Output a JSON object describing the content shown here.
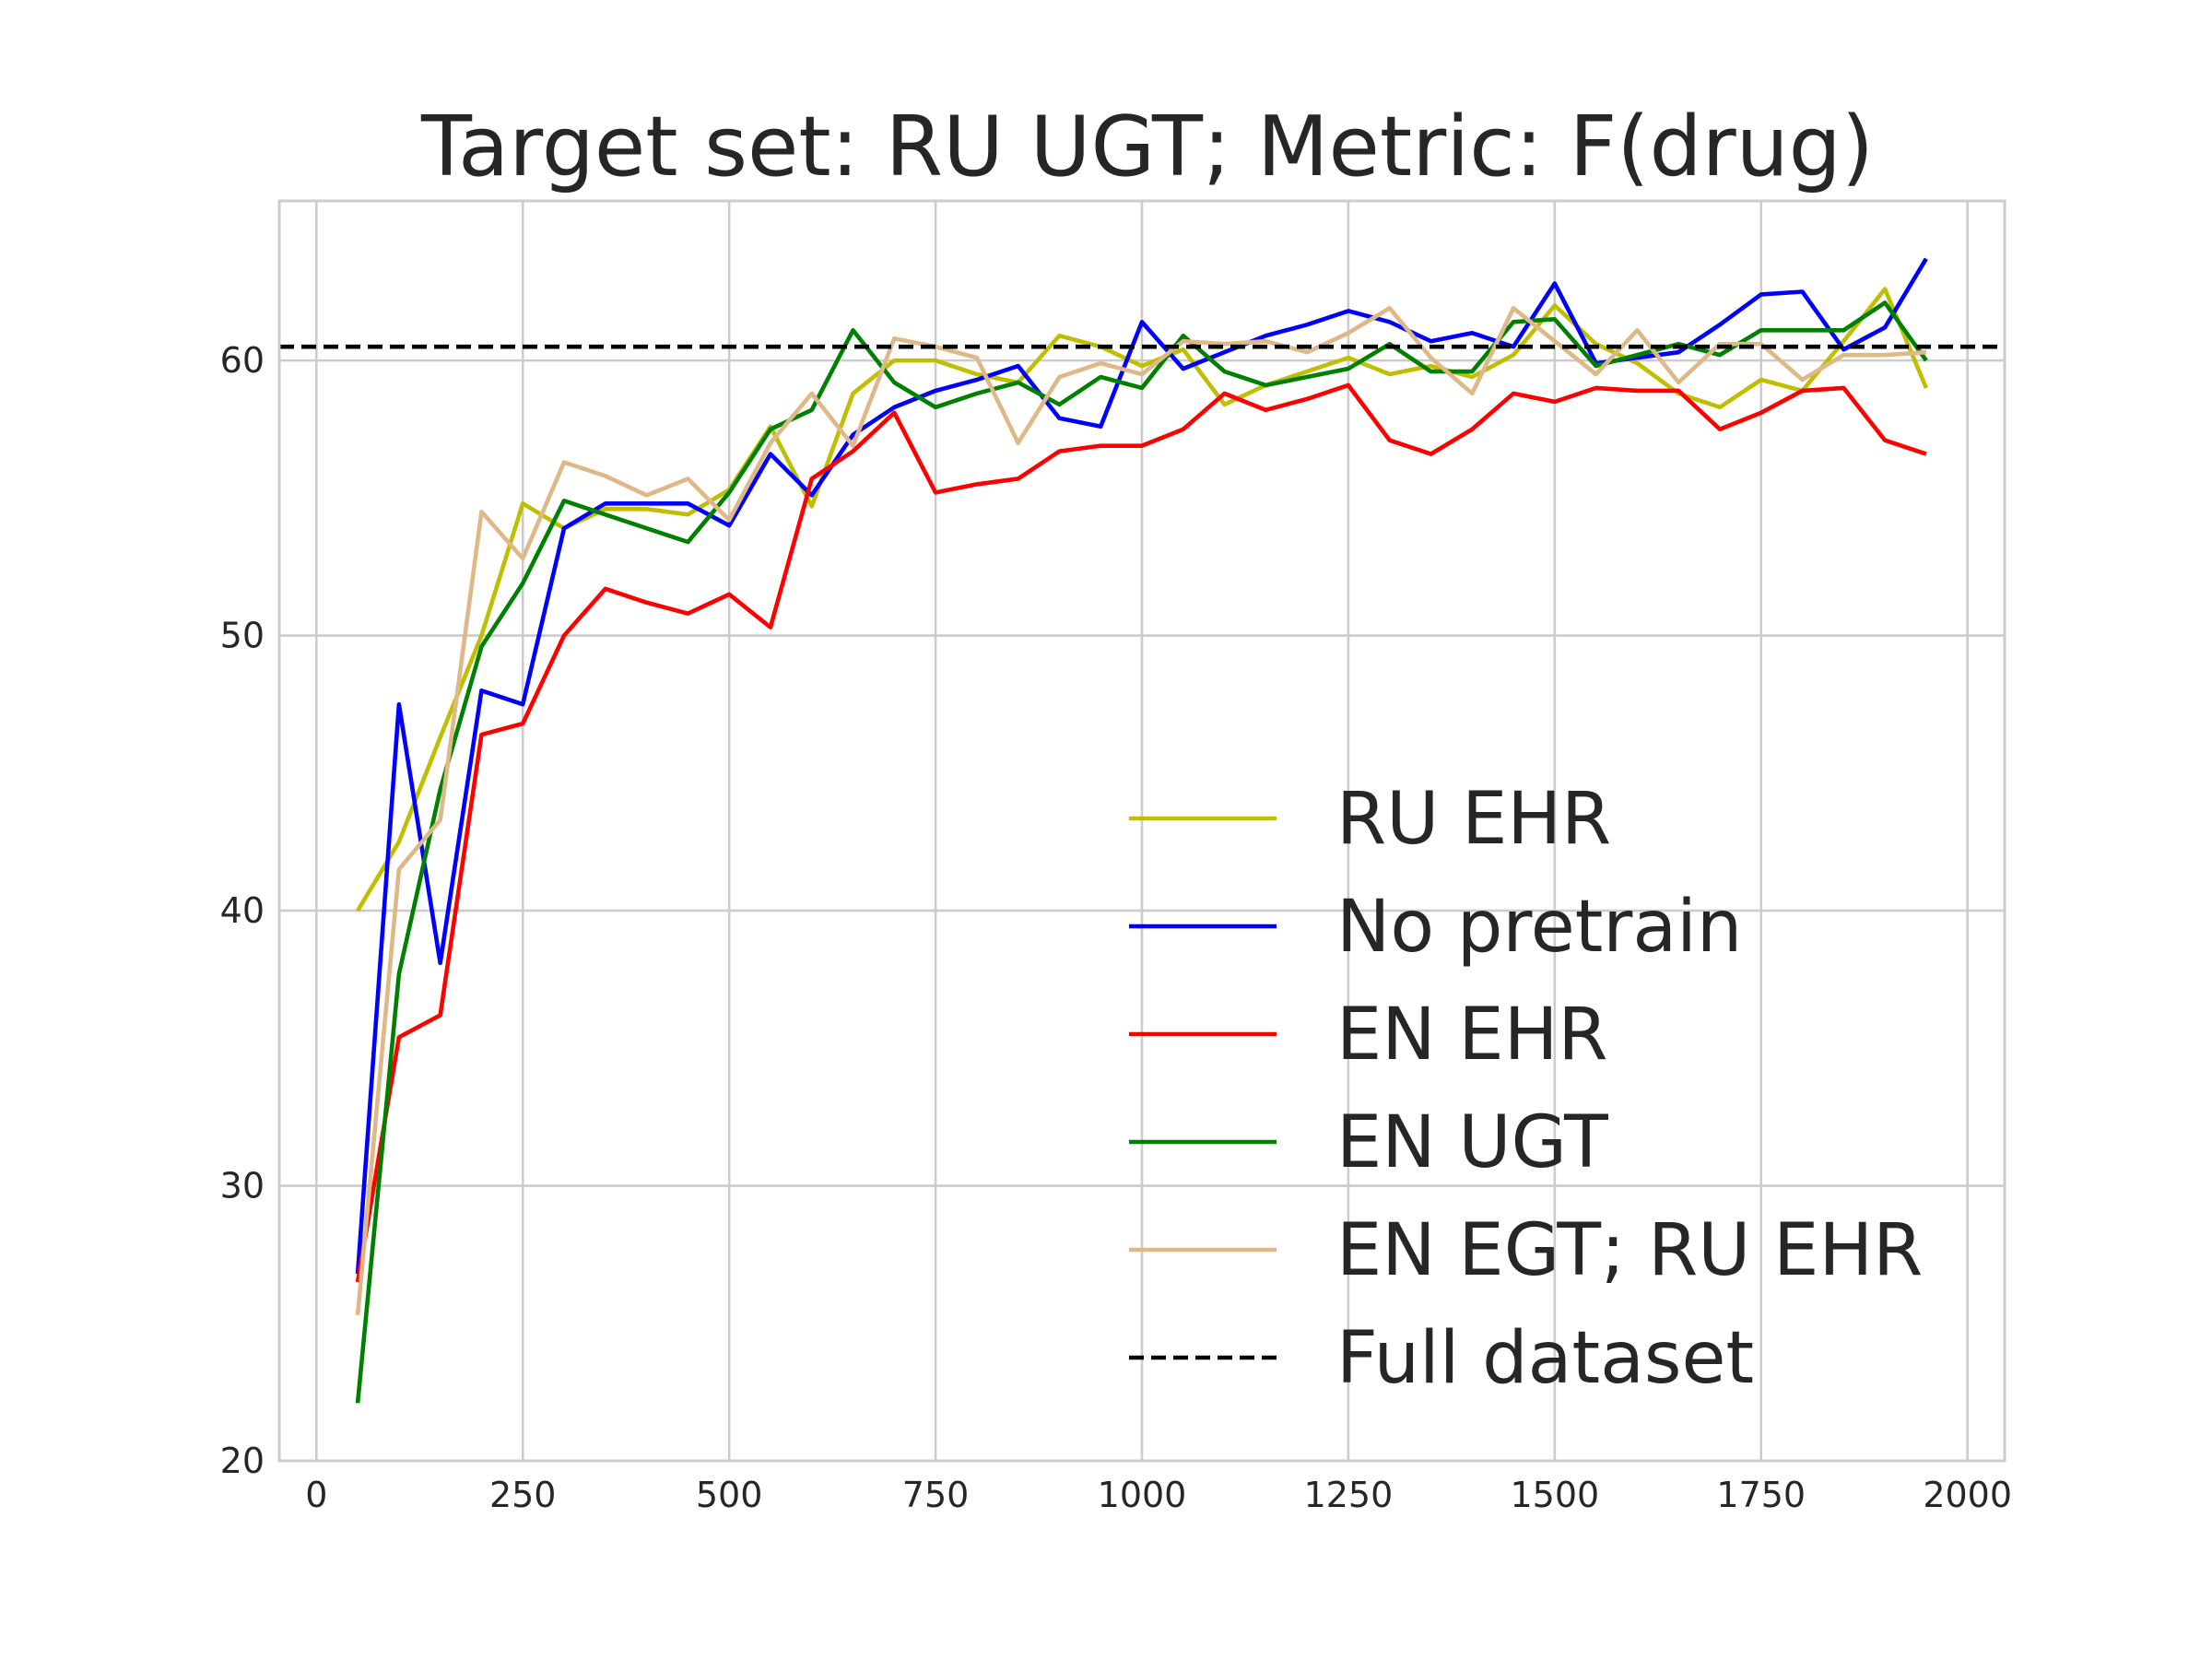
{
  "chart_data": {
    "type": "line",
    "title": "Target set: RU UGT; Metric: F(drug)",
    "xlabel": "",
    "ylabel": "",
    "xlim": [
      -45,
      2045
    ],
    "ylim": [
      20,
      65.8
    ],
    "x_ticks": [
      0,
      250,
      500,
      750,
      1000,
      1250,
      1500,
      1750,
      2000
    ],
    "y_ticks": [
      20,
      30,
      40,
      50,
      60
    ],
    "grid": true,
    "legend_position": "lower-right",
    "x": [
      50,
      100,
      150,
      200,
      250,
      300,
      350,
      400,
      450,
      500,
      550,
      600,
      650,
      700,
      750,
      800,
      850,
      900,
      950,
      1000,
      1050,
      1100,
      1150,
      1200,
      1250,
      1300,
      1350,
      1400,
      1450,
      1500,
      1550,
      1600,
      1650,
      1700,
      1750,
      1800,
      1850,
      1900,
      1950
    ],
    "series": [
      {
        "name": "RU EHR",
        "color": "#bfbf00",
        "style": "solid",
        "values": [
          40.0,
          42.5,
          46.3,
          50.0,
          54.8,
          53.9,
          54.6,
          54.6,
          54.4,
          55.3,
          57.6,
          54.7,
          58.8,
          60.0,
          60.0,
          59.5,
          59.2,
          60.9,
          60.5,
          59.8,
          60.4,
          58.4,
          59.1,
          59.6,
          60.1,
          59.5,
          59.8,
          59.4,
          60.2,
          62.0,
          60.6,
          59.9,
          58.8,
          58.3,
          59.3,
          58.9,
          60.7,
          62.6,
          59.0
        ]
      },
      {
        "name": "No pretrain",
        "color": "#0000ff",
        "style": "solid",
        "values": [
          26.8,
          47.5,
          38.1,
          48.0,
          47.5,
          53.9,
          54.8,
          54.8,
          54.8,
          54.0,
          56.6,
          55.1,
          57.3,
          58.3,
          58.9,
          59.3,
          59.8,
          57.9,
          57.6,
          61.4,
          59.7,
          60.3,
          60.9,
          61.3,
          61.8,
          61.4,
          60.7,
          61.0,
          60.5,
          62.8,
          59.9,
          60.1,
          60.3,
          61.3,
          62.4,
          62.5,
          60.4,
          61.2,
          63.7
        ]
      },
      {
        "name": "EN EHR",
        "color": "#ff0000",
        "style": "solid",
        "values": [
          26.5,
          35.4,
          36.2,
          46.4,
          46.8,
          50.0,
          51.7,
          51.2,
          50.8,
          51.5,
          50.3,
          55.7,
          56.7,
          58.1,
          55.2,
          55.5,
          55.7,
          56.7,
          56.9,
          56.9,
          57.5,
          58.8,
          58.2,
          58.6,
          59.1,
          57.1,
          56.6,
          57.5,
          58.8,
          58.5,
          59.0,
          58.9,
          58.9,
          57.5,
          58.1,
          58.9,
          59.0,
          57.1,
          56.6
        ]
      },
      {
        "name": "EN UGT",
        "color": "#008000",
        "style": "solid",
        "values": [
          22.1,
          37.7,
          44.4,
          49.6,
          51.9,
          54.9,
          54.4,
          53.9,
          53.4,
          55.2,
          57.5,
          58.2,
          61.1,
          59.2,
          58.3,
          58.8,
          59.2,
          58.4,
          59.4,
          59.0,
          60.9,
          59.6,
          59.1,
          59.4,
          59.7,
          60.6,
          59.6,
          59.6,
          61.4,
          61.5,
          59.8,
          60.2,
          60.6,
          60.2,
          61.1,
          61.1,
          61.1,
          62.1,
          60.0
        ]
      },
      {
        "name": "EN EGT; RU EHR",
        "color": "#deb887",
        "style": "solid",
        "values": [
          25.3,
          41.5,
          43.3,
          54.5,
          52.8,
          56.3,
          55.8,
          55.1,
          55.7,
          54.2,
          57.0,
          58.8,
          56.9,
          60.8,
          60.5,
          60.1,
          57.0,
          59.4,
          59.9,
          59.5,
          60.7,
          60.6,
          60.7,
          60.3,
          61.0,
          61.9,
          60.1,
          58.8,
          61.9,
          60.7,
          59.5,
          61.1,
          59.2,
          60.6,
          60.6,
          59.3,
          60.2,
          60.2,
          60.3
        ]
      },
      {
        "name": "Full dataset",
        "color": "#000000",
        "style": "dashed",
        "constant": 60.5
      }
    ]
  }
}
